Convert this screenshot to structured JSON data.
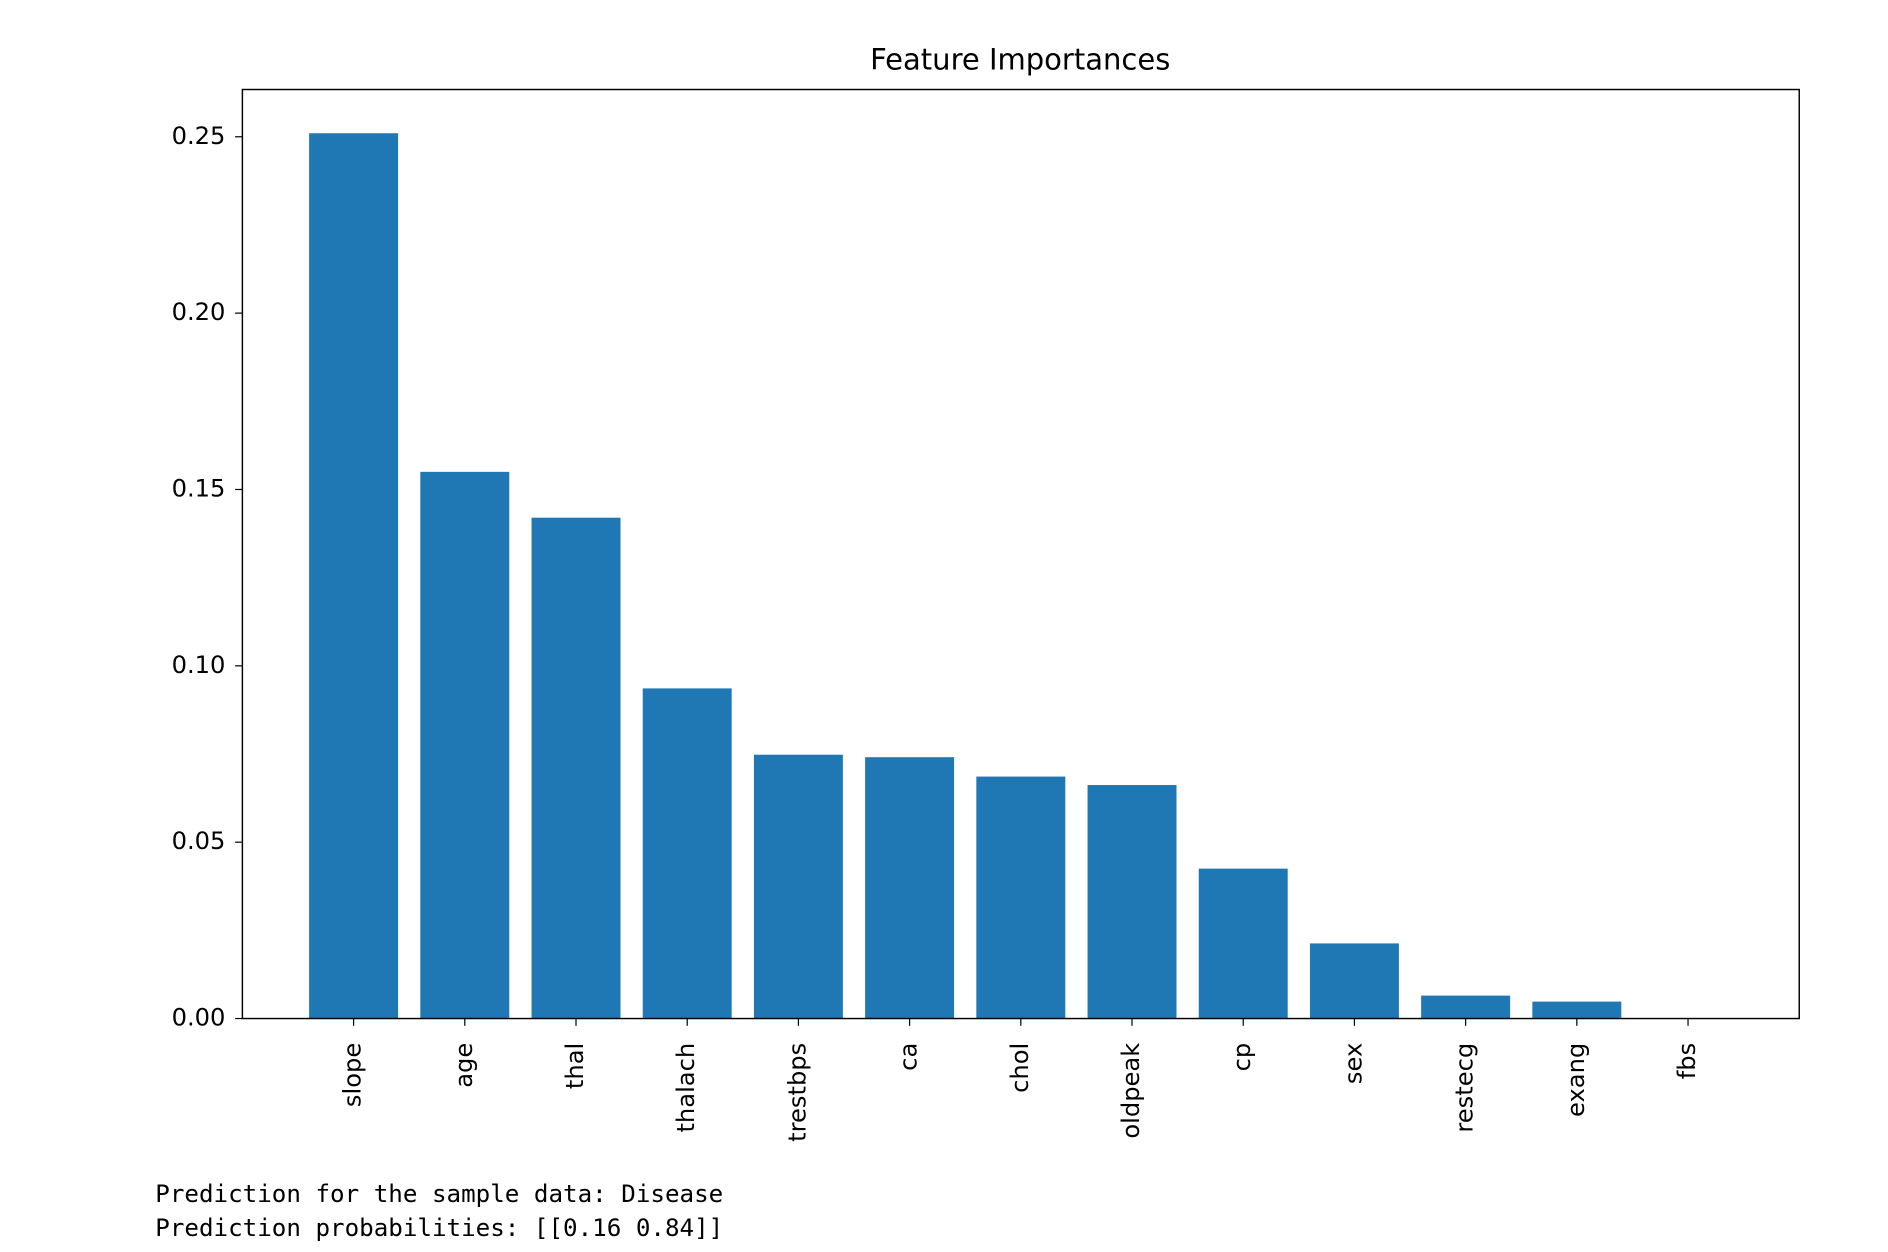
{
  "chart_data": {
    "type": "bar",
    "title": "Feature Importances",
    "categories": [
      "slope",
      "age",
      "thal",
      "thalach",
      "trestbps",
      "ca",
      "chol",
      "oldpeak",
      "cp",
      "sex",
      "restecg",
      "exang",
      "fbs"
    ],
    "values": [
      0.251,
      0.155,
      0.142,
      0.0936,
      0.0748,
      0.0741,
      0.0686,
      0.0662,
      0.0425,
      0.0213,
      0.0065,
      0.0048,
      0
    ],
    "color": "#1f77b4",
    "ylim": [
      0,
      0.2634
    ],
    "yticks": [
      {
        "value": 0,
        "label": "0.00"
      },
      {
        "value": 0.05,
        "label": "0.05"
      },
      {
        "value": 0.1,
        "label": "0.10"
      },
      {
        "value": 0.15,
        "label": "0.15"
      },
      {
        "value": 0.2,
        "label": "0.20"
      },
      {
        "value": 0.25,
        "label": "0.25"
      }
    ],
    "grid": false
  },
  "output": {
    "lines": [
      "Prediction for the sample data: Disease",
      "Prediction probabilities: [[0.16 0.84]]"
    ]
  }
}
